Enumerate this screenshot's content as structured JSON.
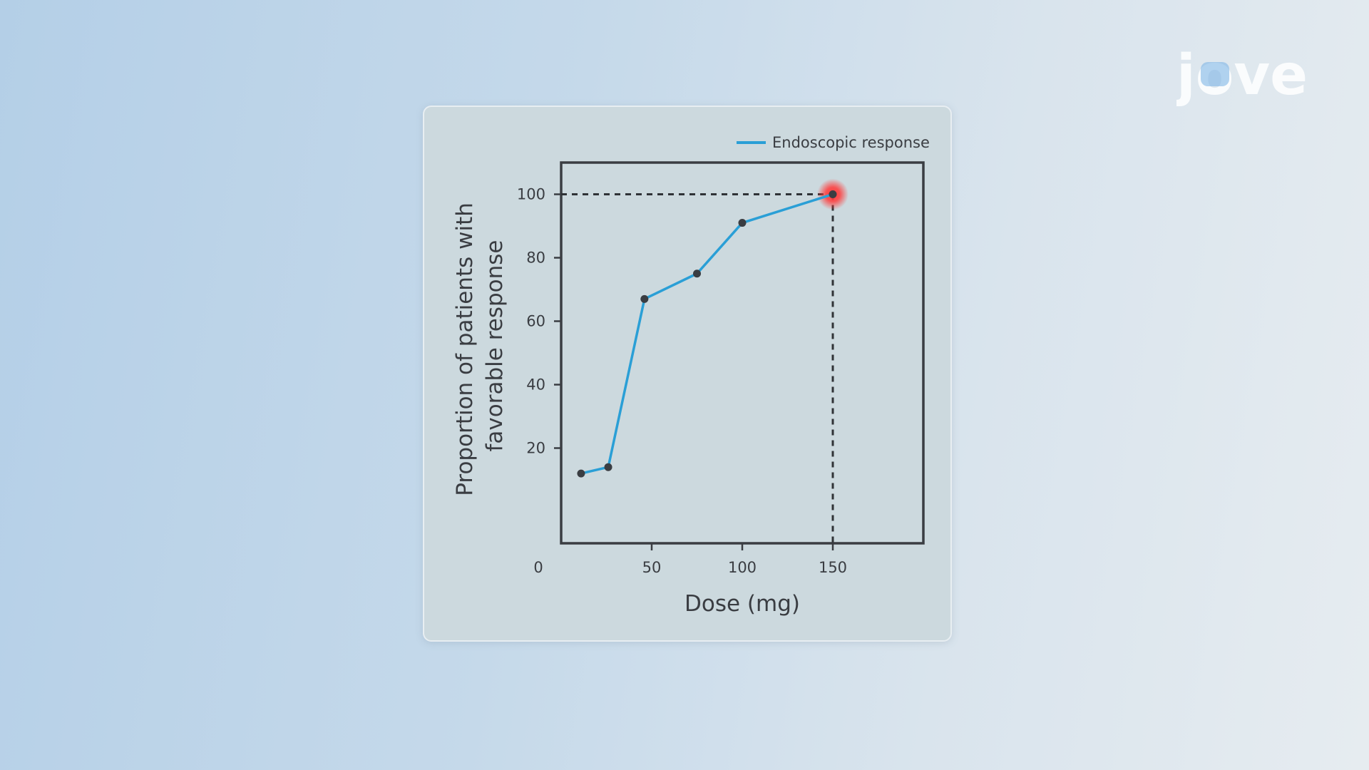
{
  "brand": {
    "logo_text": "jove",
    "logo_color": "#ffffff"
  },
  "colors": {
    "line": "#2a9fd6",
    "marker": "#3a3d42",
    "highlight": "#ff3b3b",
    "axis": "#3a3d42"
  },
  "chart_data": {
    "type": "line",
    "xlabel": "Dose (mg)",
    "ylabel_lines": [
      "Proportion of patients with",
      "favorable response"
    ],
    "xlim": [
      0,
      200
    ],
    "ylim": [
      -10,
      110
    ],
    "x_ticks": [
      0,
      50,
      100,
      150
    ],
    "y_ticks": [
      20,
      40,
      60,
      80,
      100
    ],
    "grid": false,
    "legend": "top-right",
    "series": [
      {
        "name": "Endoscopic response",
        "x": [
          11,
          26,
          46,
          75,
          100,
          150
        ],
        "y": [
          12,
          14,
          67,
          75,
          91,
          100
        ]
      }
    ],
    "highlight_point": {
      "x": 150,
      "y": 100
    },
    "reference_lines": {
      "x": 150,
      "y": 100,
      "style": "dashed"
    }
  }
}
